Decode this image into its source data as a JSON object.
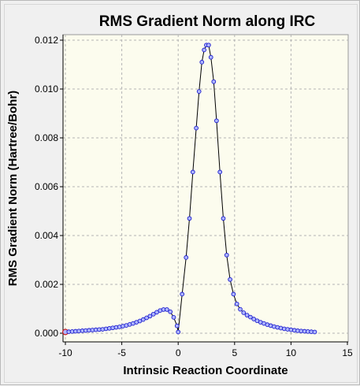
{
  "chart_data": {
    "type": "line",
    "title": "RMS Gradient Norm along IRC",
    "xlabel": "Intrinsic Reaction Coordinate",
    "ylabel": "RMS Gradient Norm (Hartree/Bohr)",
    "xlim": [
      -10,
      15
    ],
    "ylim": [
      0,
      0.012
    ],
    "x_ticks": [
      "-10",
      "-5",
      "0",
      "5",
      "10",
      "15"
    ],
    "y_ticks": [
      "0.000",
      "0.002",
      "0.004",
      "0.006",
      "0.008",
      "0.010",
      "0.012"
    ],
    "grid": true,
    "colors": {
      "plot_background": "#fcfcee",
      "line": "#000000",
      "marker_fill": "#aeb6ff",
      "marker_stroke": "#1a1acc",
      "highlight_marker": "#cc1a1a",
      "grid": "#b4b4b4"
    },
    "series": [
      {
        "x": [
          -10.0,
          -9.7,
          -9.4,
          -9.1,
          -8.8,
          -8.5,
          -8.2,
          -7.9,
          -7.6,
          -7.3,
          -7.0,
          -6.7,
          -6.4,
          -6.1,
          -5.8,
          -5.5,
          -5.2,
          -4.9,
          -4.6,
          -4.3,
          -4.0,
          -3.7,
          -3.4,
          -3.1,
          -2.8,
          -2.5,
          -2.2,
          -1.9,
          -1.6,
          -1.3,
          -1.0,
          -0.7,
          -0.4,
          -0.1,
          0.0,
          0.35,
          0.7,
          1.0,
          1.3,
          1.6,
          1.85,
          2.1,
          2.3,
          2.5,
          2.7,
          2.9,
          3.15,
          3.4,
          3.7,
          4.0,
          4.3,
          4.6,
          4.9,
          5.2,
          5.5,
          5.8,
          6.1,
          6.4,
          6.7,
          7.0,
          7.3,
          7.6,
          7.9,
          8.2,
          8.5,
          8.8,
          9.1,
          9.4,
          9.7,
          10.0,
          10.3,
          10.6,
          10.9,
          11.2,
          11.5,
          11.8,
          12.1
        ],
        "y": [
          5e-05,
          6e-05,
          7e-05,
          8e-05,
          9e-05,
          0.0001,
          0.00011,
          0.00012,
          0.00013,
          0.00014,
          0.00015,
          0.00016,
          0.00018,
          0.0002,
          0.00022,
          0.00024,
          0.00026,
          0.00029,
          0.00032,
          0.00036,
          0.0004,
          0.00045,
          0.0005,
          0.00056,
          0.00063,
          0.0007,
          0.00078,
          0.00086,
          0.00093,
          0.00097,
          0.00097,
          0.00088,
          0.00065,
          0.0003,
          5e-05,
          0.0016,
          0.0031,
          0.0047,
          0.0066,
          0.0084,
          0.0099,
          0.0111,
          0.0116,
          0.0118,
          0.0118,
          0.0113,
          0.0103,
          0.0087,
          0.0066,
          0.0047,
          0.0032,
          0.0022,
          0.0016,
          0.0012,
          0.00098,
          0.00084,
          0.00074,
          0.00066,
          0.00058,
          0.00051,
          0.00045,
          0.0004,
          0.00035,
          0.00031,
          0.00027,
          0.00024,
          0.00021,
          0.00018,
          0.00016,
          0.00014,
          0.00012,
          0.0001,
          9e-05,
          8e-05,
          7e-05,
          6e-05,
          5e-05
        ]
      }
    ]
  }
}
